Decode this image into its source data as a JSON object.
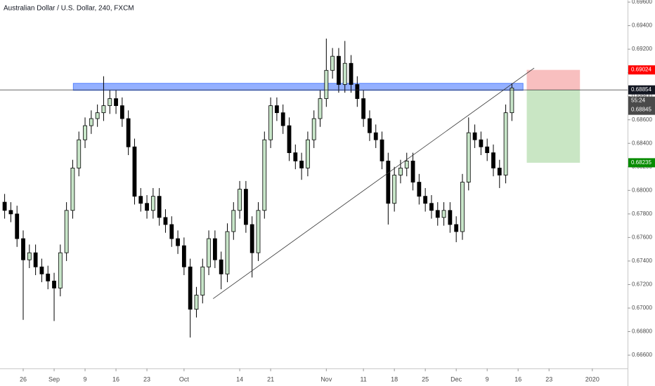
{
  "chart_data": {
    "type": "candlestick",
    "title": "Australian Dollar / U.S. Dollar, 240, FXCM",
    "up_color": "#c8e6c9",
    "down_color": "#000000",
    "wick_color": "#000000",
    "xlim": [
      -3.75,
      97.7
    ],
    "ylim": [
      0.66487,
      0.69618
    ],
    "xticks": [
      {
        "value": 0,
        "label": "26"
      },
      {
        "value": 5,
        "label": "Sep"
      },
      {
        "value": 10,
        "label": "9"
      },
      {
        "value": 15,
        "label": "16"
      },
      {
        "value": 20,
        "label": "23"
      },
      {
        "value": 26,
        "label": "Oct"
      },
      {
        "value": 35,
        "label": "14"
      },
      {
        "value": 40,
        "label": "21"
      },
      {
        "value": 49,
        "label": "Nov"
      },
      {
        "value": 55,
        "label": "11"
      },
      {
        "value": 60,
        "label": "18"
      },
      {
        "value": 65,
        "label": "25"
      },
      {
        "value": 70,
        "label": "Dec"
      },
      {
        "value": 75,
        "label": "9"
      },
      {
        "value": 80,
        "label": "16"
      },
      {
        "value": 85,
        "label": "23"
      },
      {
        "value": 92,
        "label": "2020"
      }
    ],
    "yticks": [
      {
        "value": 0.696,
        "label": "0.69600"
      },
      {
        "value": 0.694,
        "label": "0.69400"
      },
      {
        "value": 0.692,
        "label": "0.69200"
      },
      {
        "value": 0.69,
        "label": "0.69000"
      },
      {
        "value": 0.688,
        "label": "0.68800"
      },
      {
        "value": 0.686,
        "label": "0.68600"
      },
      {
        "value": 0.684,
        "label": "0.68400"
      },
      {
        "value": 0.682,
        "label": "0.68200"
      },
      {
        "value": 0.68,
        "label": "0.68000"
      },
      {
        "value": 0.678,
        "label": "0.67800"
      },
      {
        "value": 0.676,
        "label": "0.67600"
      },
      {
        "value": 0.674,
        "label": "0.67400"
      },
      {
        "value": 0.672,
        "label": "0.67200"
      },
      {
        "value": 0.67,
        "label": "0.67000"
      },
      {
        "value": 0.668,
        "label": "0.66800"
      },
      {
        "value": 0.666,
        "label": "0.66600"
      }
    ],
    "x": [
      -3,
      -2,
      -1,
      0,
      1,
      2,
      3,
      4,
      5,
      6,
      7,
      8,
      9,
      10,
      11,
      12,
      13,
      14,
      15,
      16,
      17,
      18,
      19,
      20,
      21,
      22,
      23,
      24,
      25,
      26,
      27,
      28,
      29,
      30,
      31,
      32,
      33,
      34,
      35,
      36,
      37,
      38,
      39,
      40,
      41,
      42,
      43,
      44,
      45,
      46,
      47,
      48,
      49,
      50,
      51,
      52,
      53,
      54,
      55,
      56,
      57,
      58,
      59,
      60,
      61,
      62,
      63,
      64,
      65,
      66,
      67,
      68,
      69,
      70,
      71,
      72,
      73,
      74,
      75,
      76,
      77,
      78,
      79
    ],
    "ohlc": [
      [
        0.679,
        0.6797,
        0.6776,
        0.6783
      ],
      [
        0.6783,
        0.679,
        0.6773,
        0.678
      ],
      [
        0.678,
        0.6787,
        0.6752,
        0.6759
      ],
      [
        0.6759,
        0.6766,
        0.669,
        0.6741
      ],
      [
        0.6741,
        0.6754,
        0.6734,
        0.6747
      ],
      [
        0.6747,
        0.6754,
        0.6728,
        0.6735
      ],
      [
        0.6735,
        0.6742,
        0.6722,
        0.6729
      ],
      [
        0.6729,
        0.6736,
        0.6716,
        0.6723
      ],
      [
        0.6723,
        0.673,
        0.6689,
        0.6717
      ],
      [
        0.6717,
        0.6754,
        0.671,
        0.6747
      ],
      [
        0.6747,
        0.679,
        0.674,
        0.6783
      ],
      [
        0.6783,
        0.6826,
        0.6776,
        0.6819
      ],
      [
        0.6819,
        0.685,
        0.6812,
        0.6843
      ],
      [
        0.6843,
        0.6862,
        0.6836,
        0.6855
      ],
      [
        0.6855,
        0.6868,
        0.6848,
        0.6861
      ],
      [
        0.6861,
        0.6873,
        0.6854,
        0.6866
      ],
      [
        0.6866,
        0.6897,
        0.6859,
        0.6872
      ],
      [
        0.6872,
        0.6885,
        0.6865,
        0.6878
      ],
      [
        0.6878,
        0.6885,
        0.6865,
        0.6872
      ],
      [
        0.6872,
        0.6879,
        0.6854,
        0.6861
      ],
      [
        0.6861,
        0.6868,
        0.683,
        0.6837
      ],
      [
        0.6837,
        0.6844,
        0.6788,
        0.6795
      ],
      [
        0.6795,
        0.6802,
        0.6782,
        0.6789
      ],
      [
        0.6789,
        0.6796,
        0.6776,
        0.6783
      ],
      [
        0.6783,
        0.6802,
        0.6776,
        0.6795
      ],
      [
        0.6795,
        0.6802,
        0.677,
        0.6777
      ],
      [
        0.6777,
        0.6784,
        0.6764,
        0.6771
      ],
      [
        0.6771,
        0.6778,
        0.6752,
        0.6759
      ],
      [
        0.6759,
        0.6766,
        0.6746,
        0.6753
      ],
      [
        0.6753,
        0.676,
        0.6728,
        0.6735
      ],
      [
        0.6735,
        0.6742,
        0.6675,
        0.6699
      ],
      [
        0.6699,
        0.6718,
        0.6692,
        0.6711
      ],
      [
        0.6711,
        0.6742,
        0.6704,
        0.6735
      ],
      [
        0.6735,
        0.6766,
        0.6728,
        0.6759
      ],
      [
        0.6759,
        0.6766,
        0.6734,
        0.6741
      ],
      [
        0.6741,
        0.6748,
        0.6716,
        0.6729
      ],
      [
        0.6729,
        0.6772,
        0.6722,
        0.6765
      ],
      [
        0.6765,
        0.679,
        0.6758,
        0.6783
      ],
      [
        0.6783,
        0.6808,
        0.6776,
        0.6801
      ],
      [
        0.6801,
        0.6808,
        0.6764,
        0.6771
      ],
      [
        0.6771,
        0.6778,
        0.6726,
        0.6747
      ],
      [
        0.6747,
        0.679,
        0.674,
        0.6783
      ],
      [
        0.6783,
        0.685,
        0.6776,
        0.6843
      ],
      [
        0.6843,
        0.6879,
        0.6836,
        0.6872
      ],
      [
        0.6872,
        0.6879,
        0.6859,
        0.6866
      ],
      [
        0.6866,
        0.6873,
        0.6848,
        0.6855
      ],
      [
        0.6855,
        0.6862,
        0.6825,
        0.6832
      ],
      [
        0.6832,
        0.6839,
        0.6818,
        0.6825
      ],
      [
        0.6825,
        0.6832,
        0.6809,
        0.6819
      ],
      [
        0.6819,
        0.685,
        0.6812,
        0.6843
      ],
      [
        0.6843,
        0.6868,
        0.6836,
        0.6861
      ],
      [
        0.6861,
        0.6885,
        0.6854,
        0.6878
      ],
      [
        0.6878,
        0.6929,
        0.6871,
        0.6902
      ],
      [
        0.6902,
        0.6921,
        0.6895,
        0.6914
      ],
      [
        0.6914,
        0.6921,
        0.6883,
        0.689
      ],
      [
        0.689,
        0.6927,
        0.6883,
        0.6908
      ],
      [
        0.6908,
        0.6915,
        0.6883,
        0.689
      ],
      [
        0.689,
        0.6897,
        0.6871,
        0.6878
      ],
      [
        0.6878,
        0.6885,
        0.6854,
        0.6861
      ],
      [
        0.6861,
        0.6868,
        0.6842,
        0.6849
      ],
      [
        0.6849,
        0.6856,
        0.6836,
        0.6843
      ],
      [
        0.6843,
        0.685,
        0.6818,
        0.6825
      ],
      [
        0.6825,
        0.6832,
        0.6771,
        0.6789
      ],
      [
        0.6789,
        0.682,
        0.6782,
        0.6813
      ],
      [
        0.6813,
        0.6826,
        0.6806,
        0.6819
      ],
      [
        0.6819,
        0.6832,
        0.6812,
        0.6825
      ],
      [
        0.6825,
        0.6832,
        0.68,
        0.6807
      ],
      [
        0.6807,
        0.6814,
        0.6788,
        0.6795
      ],
      [
        0.6795,
        0.6802,
        0.6782,
        0.6789
      ],
      [
        0.6789,
        0.6796,
        0.6776,
        0.6783
      ],
      [
        0.6783,
        0.679,
        0.677,
        0.6777
      ],
      [
        0.6777,
        0.679,
        0.677,
        0.6783
      ],
      [
        0.6783,
        0.679,
        0.6764,
        0.6771
      ],
      [
        0.6771,
        0.6778,
        0.6756,
        0.6765
      ],
      [
        0.6765,
        0.6814,
        0.6758,
        0.6807
      ],
      [
        0.6807,
        0.6862,
        0.68,
        0.6849
      ],
      [
        0.6849,
        0.6856,
        0.6836,
        0.6843
      ],
      [
        0.6843,
        0.685,
        0.683,
        0.6837
      ],
      [
        0.6837,
        0.6844,
        0.6825,
        0.6832
      ],
      [
        0.6832,
        0.6839,
        0.6812,
        0.6819
      ],
      [
        0.6819,
        0.6826,
        0.6802,
        0.6813
      ],
      [
        0.6813,
        0.6873,
        0.6806,
        0.6866
      ],
      [
        0.6866,
        0.6891,
        0.6859,
        0.6887
      ]
    ],
    "zone": {
      "x": [
        8.1,
        80.8
      ],
      "y": [
        0.6885,
        0.6891
      ],
      "color": "#2962ff"
    },
    "trendline": {
      "x": [
        30.7,
        82.6
      ],
      "y": [
        0.6708,
        0.6904
      ]
    },
    "position": {
      "x": [
        81.4,
        90.0
      ],
      "stop_color": "#f8bfbf",
      "target_color": "#c9e6c4"
    },
    "price_labels": [
      {
        "value": 0.69024,
        "label": "0.69024",
        "color": "#ff0000"
      },
      {
        "value": 0.68854,
        "label": "0.68854",
        "color": "#131722"
      },
      {
        "value": 0.68845,
        "label": "0.68845",
        "color": "#4a4a4a"
      },
      {
        "value": 0.68235,
        "label": "0.68235",
        "color": "#078b00"
      }
    ],
    "countdown": "55:24"
  }
}
